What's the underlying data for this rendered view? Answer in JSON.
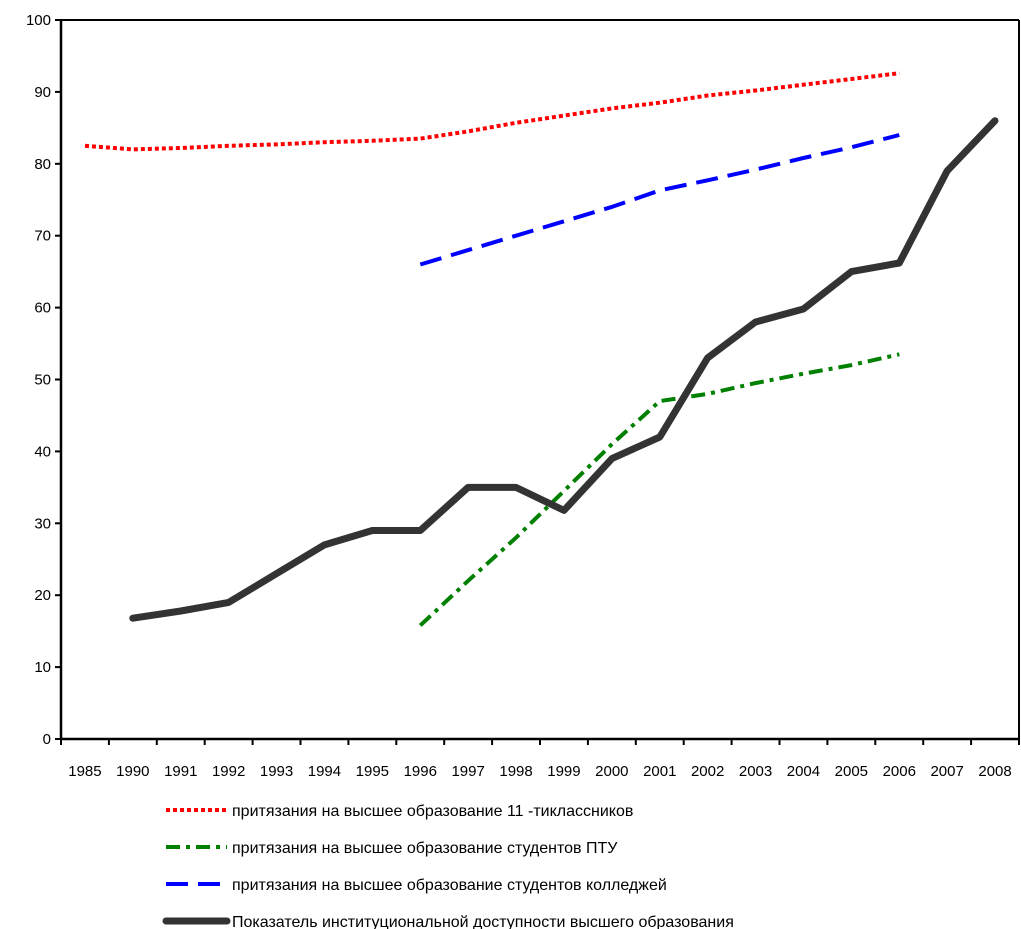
{
  "chart_data": {
    "type": "line",
    "title": "",
    "xlabel": "",
    "ylabel": "",
    "ylim": [
      0,
      100
    ],
    "yticks": [
      0,
      10,
      20,
      30,
      40,
      50,
      60,
      70,
      80,
      90,
      100
    ],
    "categories": [
      "1985",
      "1990",
      "1991",
      "1992",
      "1993",
      "1994",
      "1995",
      "1996",
      "1997",
      "1998",
      "1999",
      "2000",
      "2001",
      "2002",
      "2003",
      "2004",
      "2005",
      "2006",
      "2007",
      "2008"
    ],
    "grid": false,
    "legend_position": "bottom",
    "series": [
      {
        "name": "притязания на высшее образование 11 -тиклассников",
        "color": "#ff0000",
        "dash": "dotted",
        "values": [
          82.5,
          82.0,
          82.2,
          82.5,
          82.7,
          83.0,
          83.2,
          83.5,
          84.5,
          85.7,
          86.7,
          87.7,
          88.5,
          89.5,
          90.2,
          91.0,
          91.8,
          92.6,
          null,
          null
        ]
      },
      {
        "name": "притязания на высшее образование студентов ПТУ",
        "color": "#008000",
        "dash": "dashdot",
        "values": [
          null,
          null,
          null,
          null,
          null,
          null,
          null,
          15.8,
          22.0,
          28.0,
          34.5,
          41.0,
          47.0,
          48.0,
          49.5,
          50.8,
          52.0,
          53.5,
          null,
          null
        ]
      },
      {
        "name": "притязания на высшее образование студентов колледжей",
        "color": "#0000ff",
        "dash": "dashed",
        "values": [
          null,
          null,
          null,
          null,
          null,
          null,
          null,
          66.0,
          68.0,
          70.0,
          72.0,
          74.0,
          76.3,
          77.7,
          79.2,
          80.8,
          82.3,
          84.0,
          null,
          null
        ]
      },
      {
        "name": "Показатель институциональной доступности высшего образования",
        "color": "#333333",
        "dash": "solid",
        "values": [
          null,
          16.8,
          17.8,
          19.0,
          23.0,
          27.0,
          29.0,
          29.0,
          35.0,
          35.0,
          31.8,
          39.0,
          42.0,
          53.0,
          58.0,
          59.8,
          65.0,
          66.2,
          79.0,
          86.0
        ]
      }
    ]
  }
}
